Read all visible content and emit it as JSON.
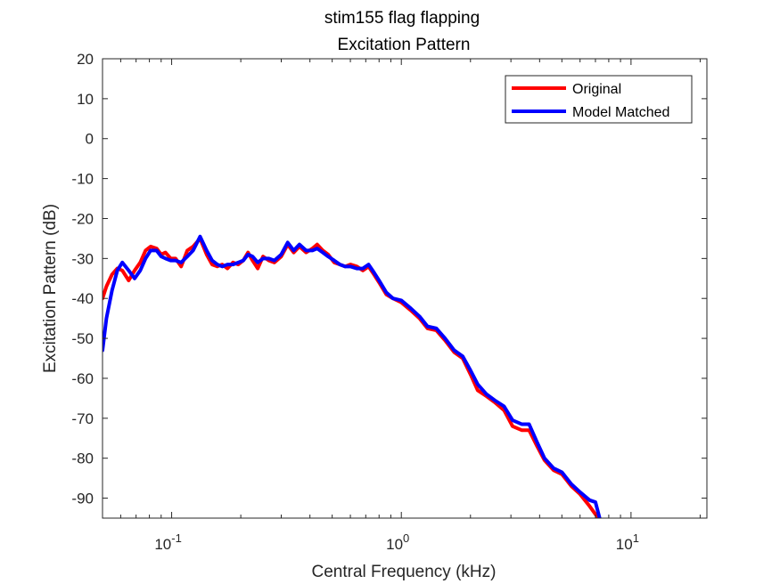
{
  "chart_data": {
    "type": "line",
    "title": "stim155 flag flapping",
    "subtitle": "Excitation Pattern",
    "xlabel": "Central Frequency (kHz)",
    "ylabel": "Excitation Pattern (dB)",
    "xscale": "log",
    "xlim": [
      0.05,
      21.4
    ],
    "ylim": [
      -95,
      20
    ],
    "xticks": [
      0.1,
      1,
      10
    ],
    "xtick_labels": [
      {
        "base": "10",
        "exp": "-1"
      },
      {
        "base": "10",
        "exp": "0"
      },
      {
        "base": "10",
        "exp": "1"
      }
    ],
    "yticks": [
      20,
      10,
      0,
      -10,
      -20,
      -30,
      -40,
      -50,
      -60,
      -70,
      -80,
      -90
    ],
    "ytick_labels": [
      "20",
      "10",
      "0",
      "-10",
      "-20",
      "-30",
      "-40",
      "-50",
      "-60",
      "-70",
      "-80",
      "-90"
    ],
    "grid": false,
    "legend_position": "top-right",
    "series": [
      {
        "name": "Original",
        "color": "#ff0000",
        "points": [
          [
            0.05,
            -40
          ],
          [
            0.052,
            -37
          ],
          [
            0.055,
            -34
          ],
          [
            0.058,
            -32.5
          ],
          [
            0.061,
            -33
          ],
          [
            0.065,
            -35.5
          ],
          [
            0.069,
            -33
          ],
          [
            0.073,
            -31
          ],
          [
            0.077,
            -28
          ],
          [
            0.081,
            -27
          ],
          [
            0.086,
            -27.5
          ],
          [
            0.09,
            -29
          ],
          [
            0.094,
            -28.5
          ],
          [
            0.099,
            -30
          ],
          [
            0.104,
            -30
          ],
          [
            0.11,
            -32
          ],
          [
            0.117,
            -28
          ],
          [
            0.124,
            -27
          ],
          [
            0.133,
            -25
          ],
          [
            0.142,
            -29
          ],
          [
            0.15,
            -31.5
          ],
          [
            0.158,
            -32
          ],
          [
            0.166,
            -31.5
          ],
          [
            0.175,
            -32.5
          ],
          [
            0.185,
            -31
          ],
          [
            0.195,
            -31.5
          ],
          [
            0.205,
            -30.5
          ],
          [
            0.215,
            -28.5
          ],
          [
            0.225,
            -30.5
          ],
          [
            0.237,
            -32.5
          ],
          [
            0.25,
            -29.5
          ],
          [
            0.265,
            -30.5
          ],
          [
            0.28,
            -31
          ],
          [
            0.3,
            -29.5
          ],
          [
            0.32,
            -26.5
          ],
          [
            0.34,
            -28.5
          ],
          [
            0.36,
            -27
          ],
          [
            0.385,
            -28.5
          ],
          [
            0.41,
            -27.5
          ],
          [
            0.43,
            -26.5
          ],
          [
            0.455,
            -28
          ],
          [
            0.48,
            -29
          ],
          [
            0.51,
            -31
          ],
          [
            0.54,
            -31.5
          ],
          [
            0.57,
            -32
          ],
          [
            0.6,
            -31.5
          ],
          [
            0.64,
            -32
          ],
          [
            0.68,
            -33
          ],
          [
            0.72,
            -32
          ],
          [
            0.76,
            -34
          ],
          [
            0.8,
            -36
          ],
          [
            0.86,
            -39
          ],
          [
            0.92,
            -40
          ],
          [
            1.0,
            -41
          ],
          [
            1.1,
            -43
          ],
          [
            1.2,
            -45
          ],
          [
            1.3,
            -47.5
          ],
          [
            1.42,
            -48
          ],
          [
            1.55,
            -50.5
          ],
          [
            1.7,
            -53.5
          ],
          [
            1.85,
            -55
          ],
          [
            2.0,
            -59
          ],
          [
            2.15,
            -63
          ],
          [
            2.35,
            -64.5
          ],
          [
            2.55,
            -66
          ],
          [
            2.8,
            -68
          ],
          [
            3.05,
            -72
          ],
          [
            3.35,
            -73
          ],
          [
            3.6,
            -73
          ],
          [
            3.9,
            -77
          ],
          [
            4.2,
            -80.5
          ],
          [
            4.6,
            -83
          ],
          [
            5.0,
            -84
          ],
          [
            5.5,
            -87
          ],
          [
            6.0,
            -89
          ],
          [
            6.6,
            -92
          ],
          [
            7.2,
            -95
          ]
        ]
      },
      {
        "name": "Model Matched",
        "color": "#0000ff",
        "points": [
          [
            0.05,
            -53
          ],
          [
            0.052,
            -45
          ],
          [
            0.055,
            -38
          ],
          [
            0.058,
            -33
          ],
          [
            0.061,
            -31
          ],
          [
            0.065,
            -33
          ],
          [
            0.069,
            -35
          ],
          [
            0.073,
            -33
          ],
          [
            0.077,
            -30
          ],
          [
            0.081,
            -28
          ],
          [
            0.086,
            -28
          ],
          [
            0.09,
            -29.5
          ],
          [
            0.094,
            -30
          ],
          [
            0.099,
            -30.5
          ],
          [
            0.104,
            -30.5
          ],
          [
            0.11,
            -31
          ],
          [
            0.117,
            -29.5
          ],
          [
            0.124,
            -28
          ],
          [
            0.133,
            -24.5
          ],
          [
            0.142,
            -28
          ],
          [
            0.15,
            -30.5
          ],
          [
            0.158,
            -31.5
          ],
          [
            0.166,
            -32
          ],
          [
            0.175,
            -31.5
          ],
          [
            0.185,
            -31.5
          ],
          [
            0.195,
            -31
          ],
          [
            0.205,
            -30.5
          ],
          [
            0.215,
            -29
          ],
          [
            0.225,
            -29.5
          ],
          [
            0.237,
            -31
          ],
          [
            0.25,
            -30
          ],
          [
            0.265,
            -30
          ],
          [
            0.28,
            -30.5
          ],
          [
            0.3,
            -29
          ],
          [
            0.32,
            -26
          ],
          [
            0.34,
            -28
          ],
          [
            0.36,
            -26.5
          ],
          [
            0.385,
            -28
          ],
          [
            0.41,
            -28
          ],
          [
            0.43,
            -27.5
          ],
          [
            0.455,
            -28.5
          ],
          [
            0.48,
            -29.5
          ],
          [
            0.51,
            -30.5
          ],
          [
            0.54,
            -31.5
          ],
          [
            0.57,
            -32
          ],
          [
            0.6,
            -32
          ],
          [
            0.64,
            -32.5
          ],
          [
            0.68,
            -32.5
          ],
          [
            0.72,
            -31.5
          ],
          [
            0.76,
            -33.5
          ],
          [
            0.8,
            -35.5
          ],
          [
            0.86,
            -38.5
          ],
          [
            0.92,
            -40
          ],
          [
            1.0,
            -40.5
          ],
          [
            1.1,
            -42.5
          ],
          [
            1.2,
            -44.5
          ],
          [
            1.3,
            -47
          ],
          [
            1.42,
            -47.5
          ],
          [
            1.55,
            -50
          ],
          [
            1.7,
            -53
          ],
          [
            1.85,
            -54.5
          ],
          [
            2.0,
            -58
          ],
          [
            2.15,
            -61.5
          ],
          [
            2.35,
            -64
          ],
          [
            2.55,
            -65.5
          ],
          [
            2.8,
            -67
          ],
          [
            3.05,
            -70.5
          ],
          [
            3.35,
            -71.5
          ],
          [
            3.6,
            -71.5
          ],
          [
            3.9,
            -76
          ],
          [
            4.2,
            -80
          ],
          [
            4.6,
            -82.5
          ],
          [
            5.0,
            -83.5
          ],
          [
            5.5,
            -86.5
          ],
          [
            6.0,
            -88.5
          ],
          [
            6.6,
            -90.5
          ],
          [
            7.0,
            -91
          ],
          [
            7.3,
            -95
          ]
        ]
      }
    ]
  }
}
